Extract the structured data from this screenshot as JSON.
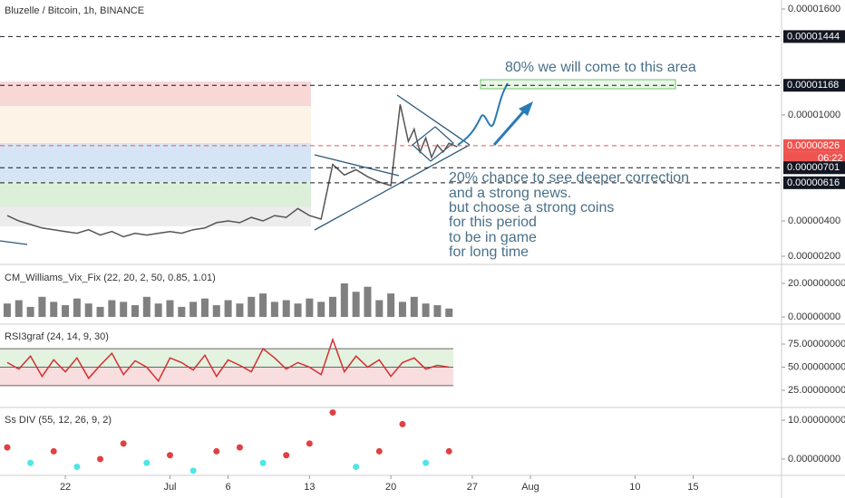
{
  "header": "Bluzelle / Bitcoin, 1h, BINANCE",
  "countdown": "06:22",
  "annotations": [
    "80% we will come to this area",
    "20% chance to see deeper correction",
    "and a strong news.",
    "but choose a strong coins",
    "for this period",
    "to be in game",
    "for long time"
  ],
  "chart_data": [
    {
      "type": "line",
      "color": "#555555",
      "x": [
        -5,
        -4,
        -3,
        -2,
        -1,
        0,
        1,
        2,
        3,
        4,
        5,
        6,
        7,
        8,
        9,
        10,
        11,
        12,
        13,
        14,
        15,
        16,
        17,
        18,
        19,
        20,
        21,
        22,
        23,
        24,
        25,
        26,
        27,
        28,
        28.8,
        29.5,
        30,
        30.5,
        31,
        31.5,
        32,
        32.5,
        33,
        33.7
      ],
      "values": [
        4.3e-06,
        4e-06,
        3.8e-06,
        3.6e-06,
        3.5e-06,
        3.4e-06,
        3.3e-06,
        3.5e-06,
        3.2e-06,
        3.4e-06,
        3.1e-06,
        3.3e-06,
        3.2e-06,
        3.3e-06,
        3.4e-06,
        3.3e-06,
        3.5e-06,
        3.6e-06,
        3.9e-06,
        4e-06,
        3.9e-06,
        4.2e-06,
        4e-06,
        4.3e-06,
        4.2e-06,
        4.7e-06,
        4.3e-06,
        4.1e-06,
        7.2e-06,
        6.6e-06,
        6.9e-06,
        6.5e-06,
        6.2e-06,
        6e-06,
        1.06e-05,
        8.5e-06,
        9.2e-06,
        7.9e-06,
        8.7e-06,
        7.6e-06,
        8.3e-06,
        7.9e-06,
        8.4e-06,
        8.2e-06
      ],
      "xlim": [
        -5.62,
        61.6
      ],
      "xticks": [
        {
          "value": 0,
          "label": "22"
        },
        {
          "value": 9,
          "label": "Jul"
        },
        {
          "value": 14,
          "label": "6"
        },
        {
          "value": 21,
          "label": "13"
        },
        {
          "value": 28,
          "label": "20"
        },
        {
          "value": 35,
          "label": "27"
        },
        {
          "value": 40,
          "label": "Aug"
        },
        {
          "value": 49,
          "label": "10"
        },
        {
          "value": 54,
          "label": "15"
        }
      ],
      "ylim": [
        1.64e-06,
        1.651e-05
      ],
      "yticks": [
        {
          "value": 1.6e-05,
          "label": "0.00001600"
        },
        {
          "value": 1e-05,
          "label": "0.00001000"
        },
        {
          "value": 4e-06,
          "label": "0.00000400"
        },
        {
          "value": 2e-06,
          "label": "0.00000200"
        }
      ],
      "levels": [
        {
          "value": 1.444e-05,
          "label": "0.00001444",
          "color": "#131722"
        },
        {
          "value": 1.168e-05,
          "label": "0.00001168",
          "color": "#131722"
        },
        {
          "value": 8.26e-06,
          "label": "0.00000826",
          "color": "#ef5350"
        },
        {
          "value": 7.01e-06,
          "label": "0.00000701",
          "color": "#131722"
        },
        {
          "value": 6.16e-06,
          "label": "0.00000616",
          "color": "#131722"
        }
      ]
    },
    {
      "type": "bar",
      "title": "CM_Williams_Vix_Fix (22, 20, 2, 50, 0.85, 1.01)",
      "color": "#808080",
      "x": [
        -5,
        -4,
        -3,
        -2,
        -1,
        0,
        1,
        2,
        3,
        4,
        5,
        6,
        7,
        8,
        9,
        10,
        11,
        12,
        13,
        14,
        15,
        16,
        17,
        18,
        19,
        20,
        21,
        22,
        23,
        24,
        25,
        26,
        27,
        28,
        29,
        30,
        31,
        32,
        33
      ],
      "values": [
        8,
        10,
        6,
        12,
        9,
        7,
        11,
        8,
        6,
        10,
        9,
        7,
        12,
        8,
        10,
        6,
        9,
        11,
        7,
        10,
        8,
        12,
        14,
        9,
        10,
        8,
        11,
        9,
        12,
        20,
        15,
        18,
        10,
        14,
        9,
        12,
        8,
        7,
        5
      ],
      "ylim": [
        -4.3,
        30.8
      ],
      "yticks": [
        {
          "value": 20,
          "label": "20.00000000"
        },
        {
          "value": 0,
          "label": "0.00000000"
        }
      ]
    },
    {
      "type": "line",
      "title": "RSI3graf (24, 14, 9, 30)",
      "color": "#d32f2f",
      "x": [
        -5,
        -4,
        -3,
        -2,
        -1,
        0,
        1,
        2,
        3,
        4,
        5,
        6,
        7,
        8,
        9,
        10,
        11,
        12,
        13,
        14,
        15,
        16,
        17,
        18,
        19,
        20,
        21,
        22,
        23,
        24,
        25,
        26,
        27,
        28,
        29,
        30,
        31,
        32,
        33
      ],
      "values": [
        55,
        48,
        62,
        40,
        58,
        45,
        60,
        38,
        52,
        65,
        42,
        57,
        50,
        35,
        60,
        55,
        47,
        63,
        40,
        58,
        52,
        45,
        70,
        60,
        48,
        55,
        50,
        42,
        80,
        45,
        62,
        50,
        58,
        40,
        55,
        60,
        48,
        52,
        50
      ],
      "bands": [
        30,
        50,
        70
      ],
      "ylim": [
        6.4,
        96.6
      ],
      "yticks": [
        {
          "value": 75,
          "label": "75.00000000"
        },
        {
          "value": 50,
          "label": "50.00000000"
        },
        {
          "value": 25,
          "label": "25.00000000"
        }
      ]
    },
    {
      "type": "scatter",
      "title": "Ss DIV (55, 12, 26, 9, 2)",
      "up_color": "#e04040",
      "down_color": "#4ee6e6",
      "x": [
        -5,
        -3,
        -1,
        1,
        3,
        5,
        7,
        9,
        11,
        13,
        15,
        17,
        19,
        21,
        23,
        25,
        27,
        29,
        31,
        33
      ],
      "values": [
        3,
        -1,
        2,
        -2,
        0,
        4,
        -1,
        1,
        -3,
        2,
        3,
        -1,
        1,
        4,
        12,
        -2,
        2,
        9,
        -1,
        2
      ],
      "ylim": [
        -4.2,
        13.3
      ],
      "yticks": [
        {
          "value": 10,
          "label": "10.00000000"
        },
        {
          "value": 0,
          "label": "0.00000000"
        }
      ]
    }
  ]
}
